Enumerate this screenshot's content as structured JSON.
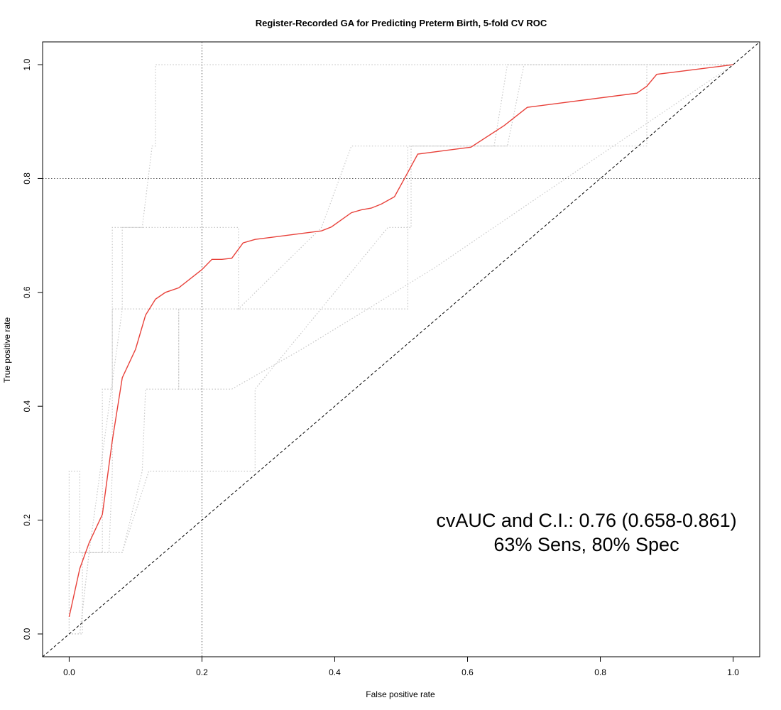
{
  "chart_data": {
    "type": "line",
    "title": "Register-Recorded GA for Predicting Preterm Birth, 5-fold CV ROC",
    "xlabel": "False positive rate",
    "ylabel": "True positive rate",
    "xlim": [
      -0.04,
      1.04
    ],
    "ylim": [
      -0.04,
      1.04
    ],
    "x_ticks": [
      "0.0",
      "0.2",
      "0.4",
      "0.6",
      "0.8",
      "1.0"
    ],
    "y_ticks": [
      "0.0",
      "0.2",
      "0.4",
      "0.6",
      "0.8",
      "1.0"
    ],
    "grid": false,
    "reference_lines": {
      "fpr": 0.2,
      "tpr": 0.8
    },
    "colors": {
      "average": "#e8413a",
      "folds": "#c8c8c8",
      "diagonal": "#000000",
      "reference": "#555555"
    },
    "annotations": [
      "cvAUC and C.I.: 0.76 (0.658-0.861)",
      "63% Sens, 80% Spec"
    ],
    "series": [
      {
        "kind": "average",
        "x": [
          0.0,
          0.016,
          0.03,
          0.05,
          0.065,
          0.08,
          0.1,
          0.115,
          0.13,
          0.145,
          0.165,
          0.2,
          0.215,
          0.23,
          0.245,
          0.262,
          0.28,
          0.38,
          0.395,
          0.425,
          0.44,
          0.455,
          0.47,
          0.49,
          0.505,
          0.525,
          0.605,
          0.655,
          0.69,
          0.855,
          0.87,
          0.885,
          1.0
        ],
        "y": [
          0.03,
          0.115,
          0.16,
          0.21,
          0.34,
          0.45,
          0.5,
          0.56,
          0.588,
          0.6,
          0.608,
          0.64,
          0.658,
          0.658,
          0.66,
          0.687,
          0.693,
          0.708,
          0.715,
          0.74,
          0.745,
          0.748,
          0.755,
          0.768,
          0.8,
          0.843,
          0.855,
          0.893,
          0.925,
          0.95,
          0.962,
          0.983,
          1.0
        ]
      },
      {
        "kind": "fold",
        "x": [
          0.0,
          0.0,
          0.016,
          0.016,
          0.05,
          0.05,
          0.065,
          0.065,
          0.08,
          0.08,
          0.11,
          0.125,
          0.13,
          0.13,
          1.0
        ],
        "y": [
          0.0,
          0.286,
          0.286,
          0.143,
          0.143,
          0.43,
          0.43,
          0.571,
          0.571,
          0.714,
          0.714,
          0.857,
          0.857,
          1.0,
          1.0
        ]
      },
      {
        "kind": "fold",
        "x": [
          0.0,
          0.0,
          0.016,
          0.016,
          0.06,
          0.065,
          0.065,
          0.255,
          0.255,
          0.38,
          0.425,
          0.44,
          0.44,
          0.64,
          0.66,
          1.0
        ],
        "y": [
          0.0,
          0.143,
          0.143,
          0.143,
          0.143,
          0.286,
          0.714,
          0.714,
          0.571,
          0.714,
          0.857,
          0.857,
          0.857,
          0.857,
          1.0,
          1.0
        ]
      },
      {
        "kind": "fold",
        "x": [
          0.0,
          0.016,
          0.03,
          0.08,
          0.11,
          0.115,
          0.115,
          0.165,
          0.165,
          0.51,
          0.51,
          0.66,
          0.66,
          0.685,
          0.685,
          1.0
        ],
        "y": [
          0.0,
          0.0,
          0.143,
          0.143,
          0.286,
          0.43,
          0.43,
          0.43,
          0.571,
          0.571,
          0.857,
          0.857,
          0.857,
          1.0,
          1.0,
          1.0
        ]
      },
      {
        "kind": "fold",
        "x": [
          0.0,
          0.02,
          0.02,
          0.08,
          0.12,
          0.2,
          0.28,
          0.28,
          0.48,
          0.515,
          0.515,
          0.87,
          0.87,
          1.0
        ],
        "y": [
          0.0,
          0.0,
          0.143,
          0.143,
          0.286,
          0.286,
          0.286,
          0.43,
          0.714,
          0.714,
          0.857,
          0.857,
          1.0,
          1.0
        ]
      },
      {
        "kind": "fold",
        "x": [
          0.0,
          0.016,
          0.03,
          0.08,
          0.165,
          0.165,
          0.23,
          0.245,
          0.35,
          0.45,
          0.55,
          1.0
        ],
        "y": [
          0.0,
          0.0,
          0.143,
          0.571,
          0.571,
          0.43,
          0.43,
          0.43,
          0.5,
          0.571,
          0.643,
          1.0
        ]
      }
    ]
  }
}
